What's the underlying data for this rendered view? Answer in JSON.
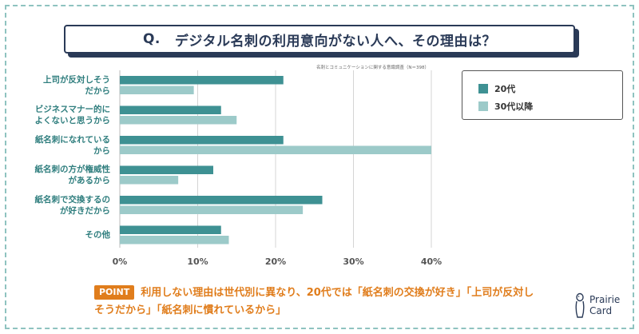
{
  "title": {
    "prefix": "Q.",
    "text": "デジタル名刺の利用意向がない人へ、その理由は？"
  },
  "source_note": "名刺とコミュニケーションに関する意識調査（N＝398）",
  "colors": {
    "series1": "#3e9193",
    "series2": "#9ccac9",
    "accent": "#e07d1c",
    "navy": "#2a3a57"
  },
  "chart_data": {
    "type": "bar",
    "orientation": "horizontal",
    "categories": [
      "上司が反対しそう\nだから",
      "ビジネスマナー的に\nよくないと思うから",
      "紙名刺になれている\nから",
      "紙名刺の方が権威性\nがあるから",
      "紙名刺で交換するの\nが好きだから",
      "その他"
    ],
    "series": [
      {
        "name": "20代",
        "values": [
          21,
          13,
          21,
          12,
          26,
          13
        ]
      },
      {
        "name": "30代以降",
        "values": [
          9.5,
          15,
          40,
          7.5,
          23.5,
          14
        ]
      }
    ],
    "xlim": [
      0,
      40
    ],
    "ticks": [
      0,
      10,
      20,
      30,
      40
    ],
    "tick_labels": [
      "0%",
      "10%",
      "20%",
      "30%",
      "40%"
    ],
    "legend_position": "top-right",
    "grid": true
  },
  "point": {
    "badge": "POINT",
    "text": "利用しない理由は世代別に異なり、20代では「紙名刺の交換が好き」「上司が反対しそうだから」「紙名刺に慣れているから」"
  },
  "logo": {
    "line1": "Prairie",
    "line2": "Card"
  }
}
